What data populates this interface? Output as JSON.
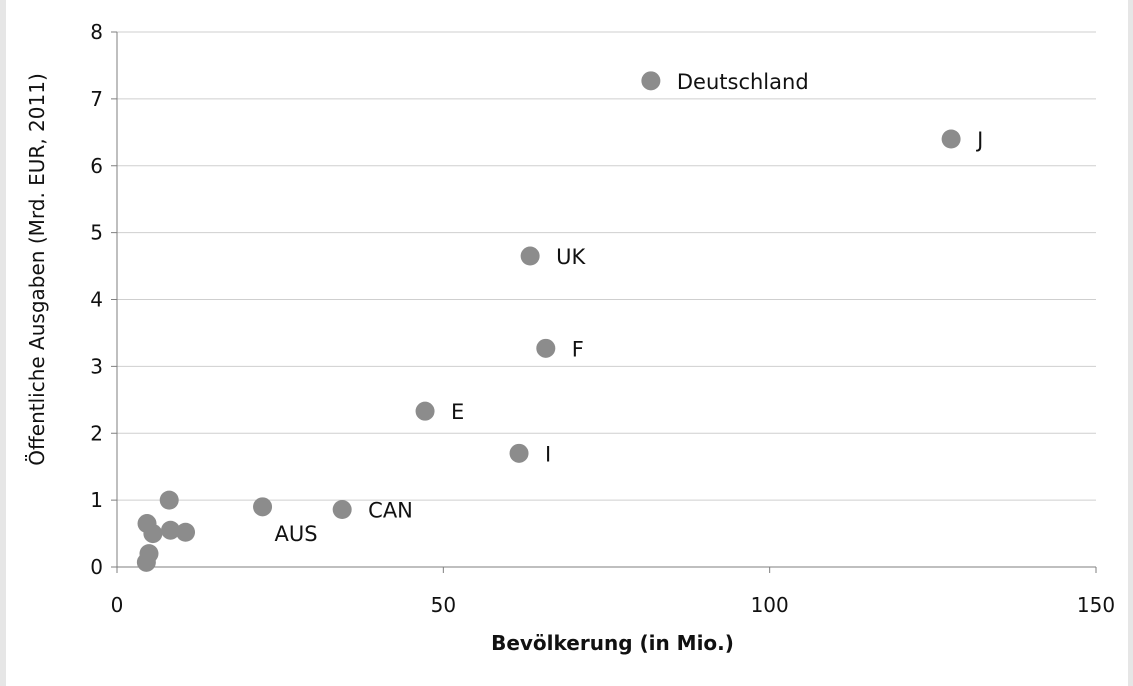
{
  "chart_data": {
    "type": "scatter",
    "xlabel": "Bevölkerung (in Mio.)",
    "ylabel": "Öffentliche Ausgaben (Mrd. EUR, 2011)",
    "xlim": [
      0,
      150
    ],
    "ylim": [
      0,
      8
    ],
    "xticks": [
      0,
      50,
      100,
      150
    ],
    "yticks": [
      0,
      1,
      2,
      3,
      4,
      5,
      6,
      7,
      8
    ],
    "grid": "horizontal",
    "legend": "none",
    "marker_color": "#8c8c8c",
    "points": [
      {
        "x": 81.8,
        "y": 7.27,
        "label": "Deutschland"
      },
      {
        "x": 127.8,
        "y": 6.4,
        "label": "J"
      },
      {
        "x": 63.3,
        "y": 4.65,
        "label": "UK"
      },
      {
        "x": 65.7,
        "y": 3.27,
        "label": "F"
      },
      {
        "x": 47.2,
        "y": 2.33,
        "label": "E"
      },
      {
        "x": 61.6,
        "y": 1.7,
        "label": "I"
      },
      {
        "x": 22.3,
        "y": 0.9,
        "label": "AUS"
      },
      {
        "x": 34.5,
        "y": 0.86,
        "label": "CAN"
      },
      {
        "x": 8.0,
        "y": 1.0,
        "label": ""
      },
      {
        "x": 4.6,
        "y": 0.65,
        "label": ""
      },
      {
        "x": 5.5,
        "y": 0.5,
        "label": ""
      },
      {
        "x": 8.2,
        "y": 0.55,
        "label": ""
      },
      {
        "x": 10.5,
        "y": 0.52,
        "label": ""
      },
      {
        "x": 4.9,
        "y": 0.2,
        "label": ""
      },
      {
        "x": 4.5,
        "y": 0.07,
        "label": ""
      }
    ]
  }
}
